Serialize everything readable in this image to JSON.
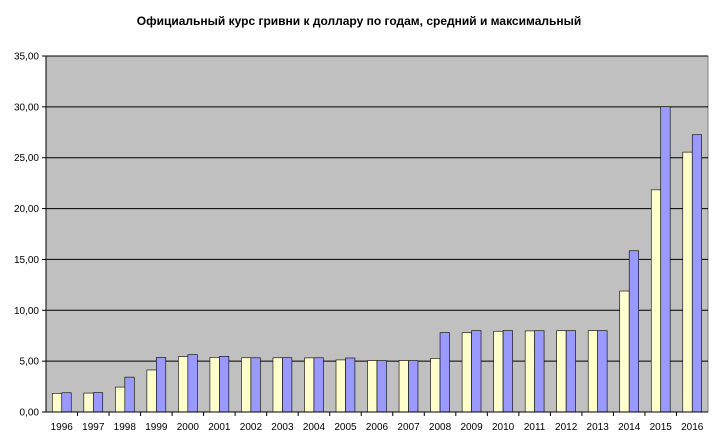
{
  "chart_data": {
    "type": "bar",
    "title": "Официальный курс гривни к доллару по годам, средний и максимальный",
    "xlabel": "",
    "ylabel": "",
    "categories": [
      "1996",
      "1997",
      "1998",
      "1999",
      "2000",
      "2001",
      "2002",
      "2003",
      "2004",
      "2005",
      "2006",
      "2007",
      "2008",
      "2009",
      "2010",
      "2011",
      "2012",
      "2013",
      "2014",
      "2015",
      "2016"
    ],
    "series": [
      {
        "values": [
          1.83,
          1.86,
          2.45,
          4.13,
          5.44,
          5.37,
          5.33,
          5.33,
          5.32,
          5.12,
          5.05,
          5.05,
          5.27,
          7.79,
          7.94,
          7.97,
          7.99,
          7.99,
          11.89,
          21.84,
          25.55
        ]
      },
      {
        "values": [
          1.89,
          1.9,
          3.43,
          5.36,
          5.64,
          5.47,
          5.33,
          5.34,
          5.33,
          5.31,
          5.05,
          5.05,
          7.8,
          8.0,
          8.0,
          7.99,
          8.0,
          8.0,
          15.85,
          30.01,
          27.26
        ]
      }
    ],
    "ylim": [
      0,
      35
    ],
    "yticks": [
      "0,00",
      "5,00",
      "10,00",
      "15,00",
      "20,00",
      "25,00",
      "30,00",
      "35,00"
    ],
    "grid": true,
    "colors": {
      "plot_background": "#c0c0c0",
      "series_1_fill": "#ffffcc",
      "series_2_fill": "#9999ff",
      "bar_stroke": "#000000",
      "grid": "#000000"
    }
  }
}
